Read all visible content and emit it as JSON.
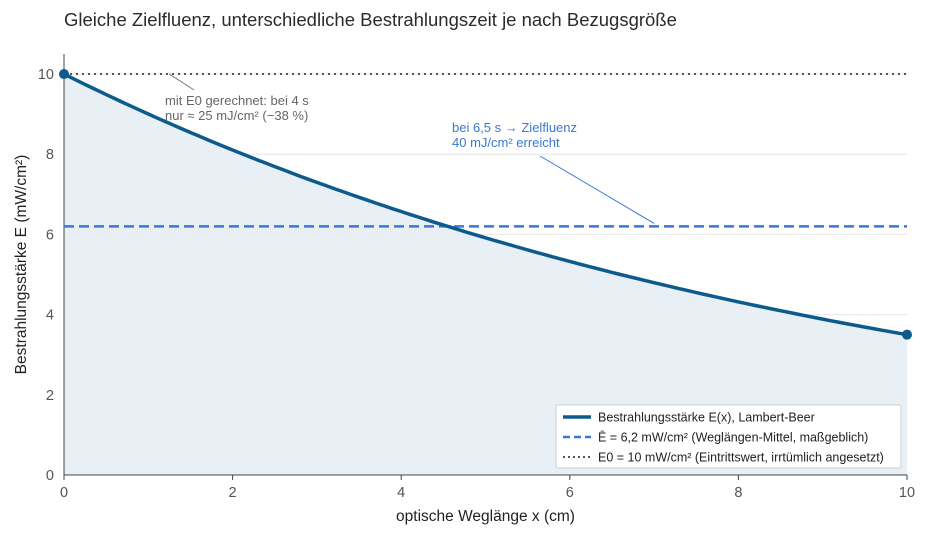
{
  "chart_data": {
    "type": "line",
    "title": "Gleiche Zielfluenz, unterschiedliche Bestrahlungszeit je nach Bezugsgröße",
    "xlabel": "optische Weglänge x (cm)",
    "ylabel": "Bestrahlungsstärke E (mW/cm²)",
    "xlim": [
      0,
      10
    ],
    "ylim": [
      0,
      10.5
    ],
    "xticks": [
      "0",
      "2",
      "4",
      "6",
      "8",
      "10"
    ],
    "yticks": [
      "0",
      "2",
      "4",
      "6",
      "8",
      "10"
    ],
    "grid": "horizontal",
    "legend_position": "bottom-right",
    "series": [
      {
        "name": "Bestrahlungsstärke E(x), Lambert-Beer",
        "style": "solid",
        "color": "#0d5a8c",
        "fill": "#e8eff5",
        "function": "E(x) = 10 · 0.35^(x/10)",
        "x": [
          0,
          1,
          2,
          3,
          4,
          5,
          6,
          7,
          8,
          9,
          10
        ],
        "values": [
          10.0,
          9.0,
          8.1,
          7.3,
          6.57,
          5.92,
          5.33,
          4.8,
          4.32,
          3.89,
          3.5
        ]
      },
      {
        "name": "Ē = 6,2 mW/cm² (Weglängen-Mittel, maßgeblich)",
        "style": "dashed",
        "color": "#3a78d4",
        "constant": 6.2
      },
      {
        "name": "E0 = 10 mW/cm² (Eintrittswert, irrtümlich angesetzt)",
        "style": "dotted",
        "color": "#555555",
        "constant": 10.0
      }
    ],
    "annotations": [
      {
        "lines": [
          "mit E0 gerechnet: bei 4 s",
          "nur ≈ 25 mJ/cm² (−38 %)"
        ],
        "color": "#666666",
        "arrow_to": {
          "x": 1.25,
          "y": 10.0
        }
      },
      {
        "lines": [
          "bei 6,5 s → Zielfluenz",
          "40 mJ/cm² erreicht"
        ],
        "color": "#3a78d4",
        "arrow_to": {
          "x": 7.0,
          "y": 6.2
        }
      }
    ]
  }
}
